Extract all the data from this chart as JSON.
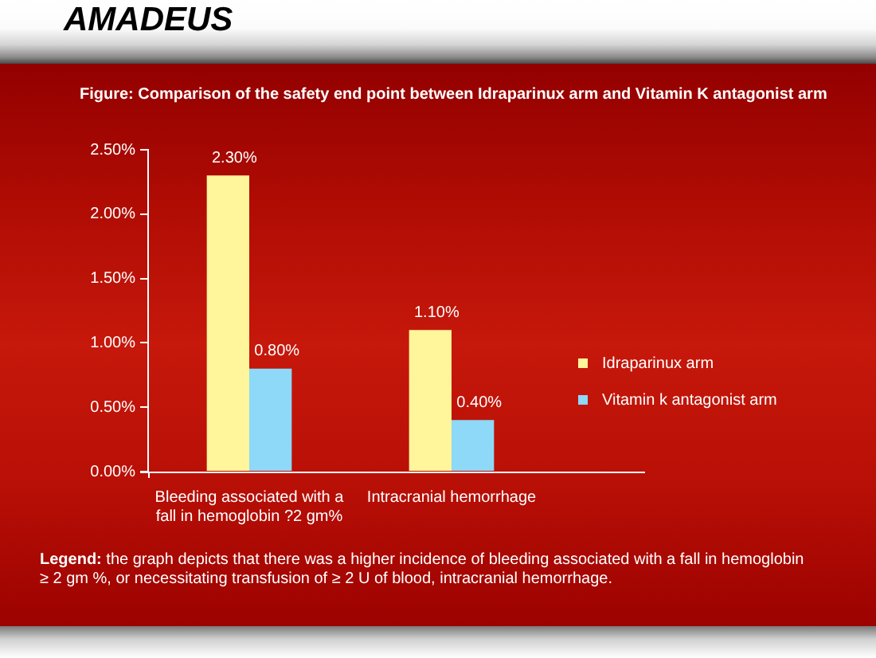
{
  "chart_data": {
    "type": "bar",
    "title": "AMADEUS",
    "subtitle": "Figure: Comparison of the safety end point between Idraparinux arm and Vitamin K antagonist arm",
    "categories": [
      "Bleeding associated with a fall in hemoglobin ?2 gm%",
      "Intracranial hemorrhage"
    ],
    "series": [
      {
        "name": "Idraparinux arm",
        "color": "#fff59a",
        "values": [
          2.3,
          1.1
        ],
        "value_labels": [
          "2.30%",
          "1.10%"
        ]
      },
      {
        "name": "Vitamin k antagonist arm",
        "color": "#8ed8f8",
        "values": [
          0.8,
          0.4
        ],
        "value_labels": [
          "0.80%",
          "0.40%"
        ]
      }
    ],
    "ylim": [
      0,
      2.5
    ],
    "yticks": [
      {
        "value": 0,
        "label": "0.00%"
      },
      {
        "value": 0.5,
        "label": "0.50%"
      },
      {
        "value": 1,
        "label": "1.00%"
      },
      {
        "value": 1.5,
        "label": "1.50%"
      },
      {
        "value": 2,
        "label": "2.00%"
      },
      {
        "value": 2.5,
        "label": "2.50%"
      }
    ],
    "grid": false,
    "legend": "right",
    "annotations": [
      "Legend: the graph depicts that there was a higher incidence of bleeding associated with a fall in hemoglobin ≥ 2 gm %, or necessitating transfusion of ≥ 2 U of blood, intracranial hemorrhage."
    ]
  }
}
